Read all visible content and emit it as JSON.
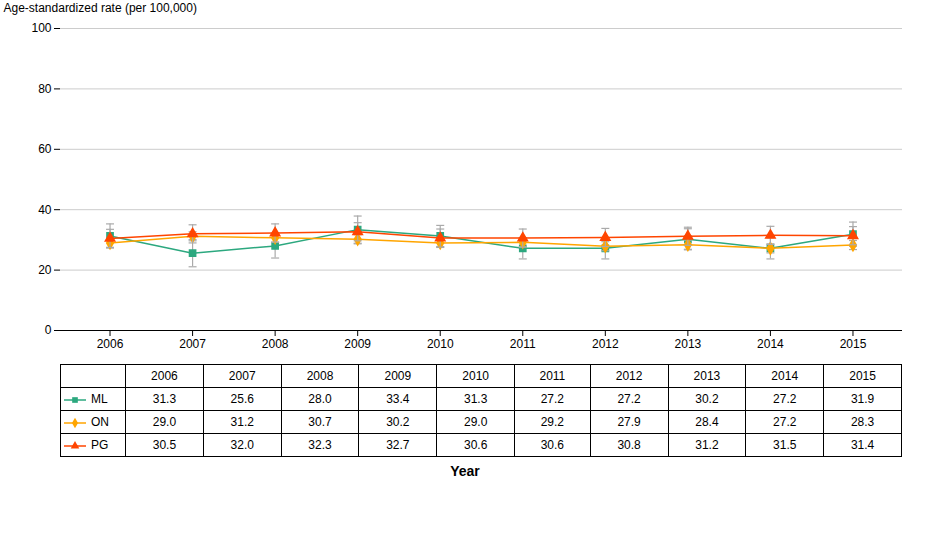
{
  "chart_data": {
    "type": "line",
    "xlabel": "Year",
    "ylabel": "Age-standardized rate (per 100,000)",
    "x": [
      2006,
      2007,
      2008,
      2009,
      2010,
      2011,
      2012,
      2013,
      2014,
      2015
    ],
    "xlim": [
      2005.4,
      2015.6
    ],
    "xticks": [
      2006,
      2007,
      2008,
      2009,
      2010,
      2011,
      2012,
      2013,
      2014,
      2015
    ],
    "ylim": [
      0,
      100
    ],
    "yticks": [
      0,
      20,
      40,
      60,
      80,
      100
    ],
    "grid": true,
    "data_labels": true,
    "series": [
      {
        "name": "ML",
        "color": "#2CA87F",
        "marker": "square",
        "values": [
          31.3,
          25.6,
          28.0,
          33.4,
          31.3,
          27.2,
          27.2,
          30.2,
          27.2,
          31.9
        ],
        "value_labels": [
          "31.3",
          "25.6",
          "28.0",
          "33.4",
          "31.3",
          "27.2",
          "27.2",
          "30.2",
          "27.2",
          "31.9"
        ],
        "errors": [
          4.0,
          4.5,
          4.0,
          4.5,
          3.5,
          3.5,
          3.5,
          3.5,
          3.5,
          4.0
        ]
      },
      {
        "name": "ON",
        "color": "#FFA500",
        "marker": "diamond",
        "values": [
          29.0,
          31.2,
          30.7,
          30.2,
          29.0,
          29.2,
          27.9,
          28.4,
          27.2,
          28.3
        ],
        "value_labels": [
          "29.0",
          "31.2",
          "30.7",
          "30.2",
          "29.0",
          "29.2",
          "27.9",
          "28.4",
          "27.2",
          "28.3"
        ],
        "errors": [
          1.5,
          1.5,
          1.5,
          1.5,
          1.5,
          1.5,
          1.5,
          1.5,
          1.5,
          1.5
        ]
      },
      {
        "name": "PG",
        "color": "#FF4500",
        "marker": "triangle",
        "values": [
          30.5,
          32.0,
          32.3,
          32.7,
          30.6,
          30.6,
          30.8,
          31.2,
          31.5,
          31.4
        ],
        "value_labels": [
          "30.5",
          "32.0",
          "32.3",
          "32.7",
          "30.6",
          "30.6",
          "30.8",
          "31.2",
          "31.5",
          "31.4"
        ],
        "errors": [
          3.0,
          3.0,
          3.0,
          3.0,
          3.0,
          3.0,
          3.0,
          3.0,
          3.0,
          3.0
        ]
      }
    ]
  }
}
